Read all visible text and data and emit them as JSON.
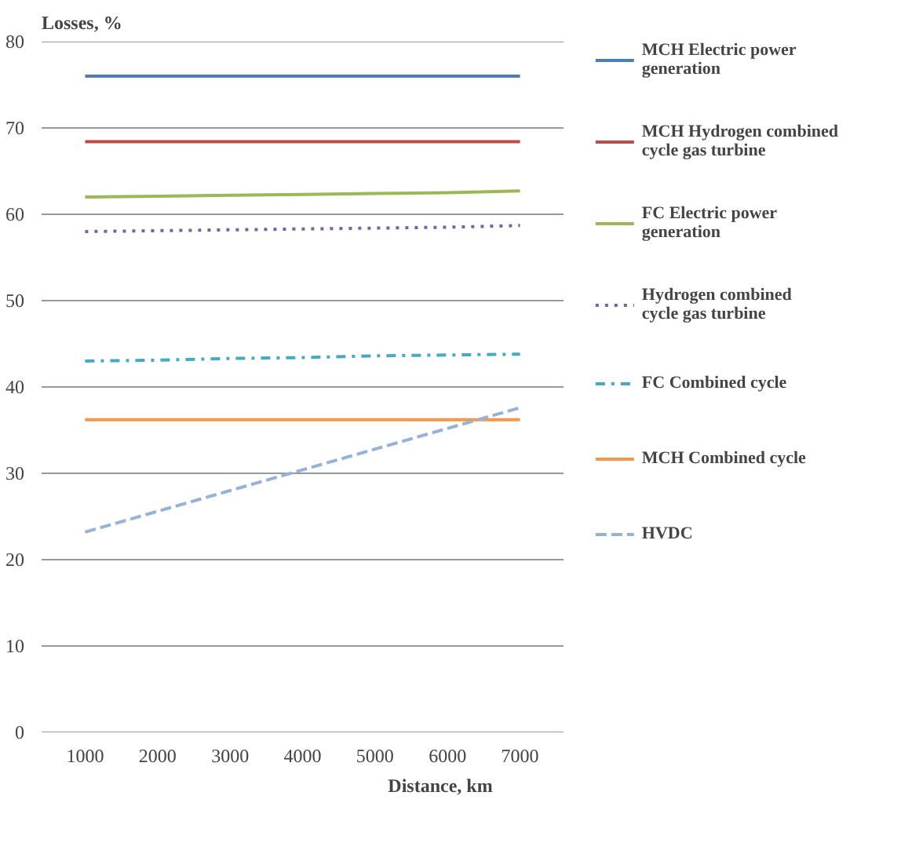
{
  "chart_data": {
    "type": "line",
    "ylabel": "Losses, %",
    "xlabel": "Distance, km",
    "categories": [
      "1000",
      "2000",
      "3000",
      "4000",
      "5000",
      "6000",
      "7000"
    ],
    "ylim": [
      0,
      80
    ],
    "yticks": [
      0,
      10,
      20,
      30,
      40,
      50,
      60,
      70,
      80
    ],
    "grid": "y",
    "legend": "right",
    "series": [
      {
        "name": "MCH Electric power generation",
        "color": "#4a7ebb",
        "line_style": "solid",
        "values": [
          76,
          76,
          76,
          76,
          76,
          76,
          76
        ]
      },
      {
        "name": "MCH Hydrogen combined cycle gas turbine",
        "color": "#be4b48",
        "line_style": "solid",
        "values": [
          68.4,
          68.4,
          68.4,
          68.4,
          68.4,
          68.4,
          68.4
        ]
      },
      {
        "name": "FC Electric power generation",
        "color": "#98b954",
        "line_style": "solid",
        "values": [
          62.0,
          62.1,
          62.2,
          62.3,
          62.4,
          62.5,
          62.7
        ]
      },
      {
        "name": "Hydrogen combined cycle gas turbine",
        "color": "#7d60a0",
        "line_style": "dotted",
        "values": [
          58.0,
          58.1,
          58.2,
          58.3,
          58.4,
          58.5,
          58.7
        ]
      },
      {
        "name": "FC Combined cycle",
        "color": "#46aac5",
        "line_style": "dashdot",
        "values": [
          43.0,
          43.1,
          43.3,
          43.4,
          43.6,
          43.7,
          43.8
        ]
      },
      {
        "name": "MCH Combined cycle",
        "color": "#f79646",
        "line_style": "solid",
        "values": [
          36.2,
          36.2,
          36.2,
          36.2,
          36.2,
          36.2,
          36.2
        ]
      },
      {
        "name": "HVDC",
        "color": "#95b3d7",
        "line_style": "dashed",
        "values": [
          23.2,
          25.6,
          28.0,
          30.4,
          32.8,
          35.2,
          37.6
        ]
      }
    ]
  }
}
